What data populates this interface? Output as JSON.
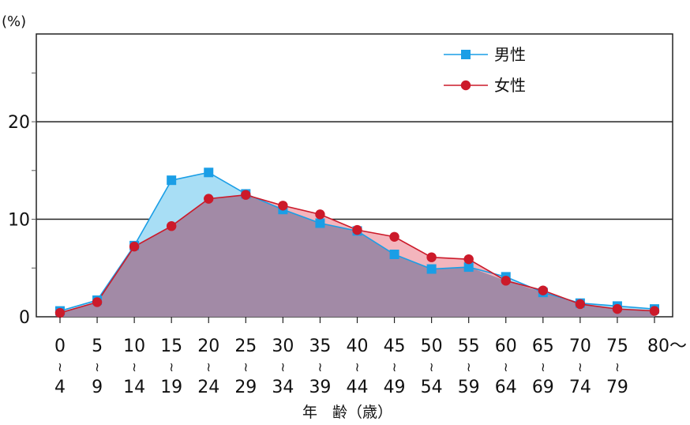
{
  "chart_data": {
    "type": "area",
    "title": "",
    "ylabel": "(%)",
    "xlabel": "年　齢（歳）",
    "ylim": [
      0,
      29
    ],
    "yticks": [
      0,
      10,
      20
    ],
    "ytick_labels": [
      "0",
      "10",
      "20"
    ],
    "grid_y": [
      10,
      20
    ],
    "legend_position": "top-right",
    "categories": [
      {
        "top": "0",
        "sep": "≀",
        "bottom": "4"
      },
      {
        "top": "5",
        "sep": "≀",
        "bottom": "9"
      },
      {
        "top": "10",
        "sep": "≀",
        "bottom": "14"
      },
      {
        "top": "15",
        "sep": "≀",
        "bottom": "19"
      },
      {
        "top": "20",
        "sep": "≀",
        "bottom": "24"
      },
      {
        "top": "25",
        "sep": "≀",
        "bottom": "29"
      },
      {
        "top": "30",
        "sep": "≀",
        "bottom": "34"
      },
      {
        "top": "35",
        "sep": "≀",
        "bottom": "39"
      },
      {
        "top": "40",
        "sep": "≀",
        "bottom": "44"
      },
      {
        "top": "45",
        "sep": "≀",
        "bottom": "49"
      },
      {
        "top": "50",
        "sep": "≀",
        "bottom": "54"
      },
      {
        "top": "55",
        "sep": "≀",
        "bottom": "59"
      },
      {
        "top": "60",
        "sep": "≀",
        "bottom": "64"
      },
      {
        "top": "65",
        "sep": "≀",
        "bottom": "69"
      },
      {
        "top": "70",
        "sep": "≀",
        "bottom": "74"
      },
      {
        "top": "75",
        "sep": "≀",
        "bottom": "79"
      },
      {
        "top": "80～",
        "sep": "",
        "bottom": ""
      }
    ],
    "series": [
      {
        "name": "男性",
        "marker": "square",
        "color": "#1a9ee6",
        "fill": "#a8def5",
        "values": [
          0.6,
          1.7,
          7.3,
          14.0,
          14.8,
          12.6,
          11.0,
          9.6,
          8.8,
          6.4,
          4.9,
          5.1,
          4.1,
          2.5,
          1.4,
          1.1,
          0.8
        ]
      },
      {
        "name": "女性",
        "marker": "circle",
        "color": "#cc1a2a",
        "fill": "#f3b5bd",
        "values": [
          0.4,
          1.5,
          7.2,
          9.3,
          12.1,
          12.5,
          11.4,
          10.5,
          8.9,
          8.2,
          6.1,
          5.9,
          3.7,
          2.7,
          1.3,
          0.8,
          0.6
        ]
      }
    ],
    "overlap_fill": "#a28aa6"
  }
}
